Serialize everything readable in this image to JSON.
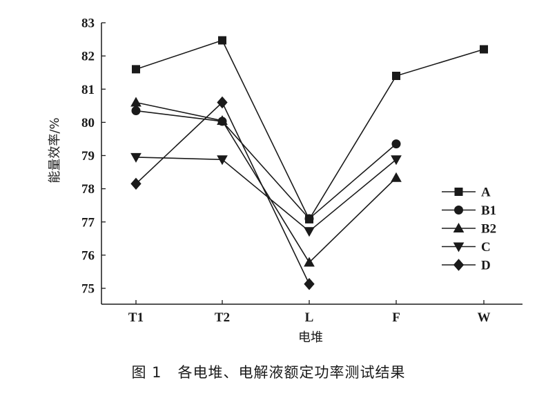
{
  "chart_data": {
    "type": "line",
    "xlabel": "电堆",
    "ylabel": "能量效率/%",
    "categories": [
      "T1",
      "T2",
      "L",
      "F",
      "W"
    ],
    "ylim": [
      75,
      83
    ],
    "yticks": [
      75,
      76,
      77,
      78,
      79,
      80,
      81,
      82,
      83
    ],
    "grid": false,
    "legend_position": "right",
    "series": [
      {
        "name": "A",
        "marker": "square",
        "values": [
          81.6,
          82.47,
          77.08,
          81.4,
          82.2
        ]
      },
      {
        "name": "B1",
        "marker": "circle",
        "values": [
          80.35,
          80.03,
          77.1,
          79.35,
          null
        ]
      },
      {
        "name": "B2",
        "marker": "triangle-up",
        "values": [
          80.6,
          80.05,
          75.78,
          78.33,
          null
        ]
      },
      {
        "name": "C",
        "marker": "triangle-down",
        "values": [
          78.95,
          78.88,
          76.72,
          78.88,
          null
        ]
      },
      {
        "name": "D",
        "marker": "diamond",
        "values": [
          78.15,
          80.6,
          75.13,
          null,
          null
        ]
      }
    ]
  },
  "caption": {
    "figure_number": "图 1",
    "text": "各电堆、电解液额定功率测试结果"
  }
}
